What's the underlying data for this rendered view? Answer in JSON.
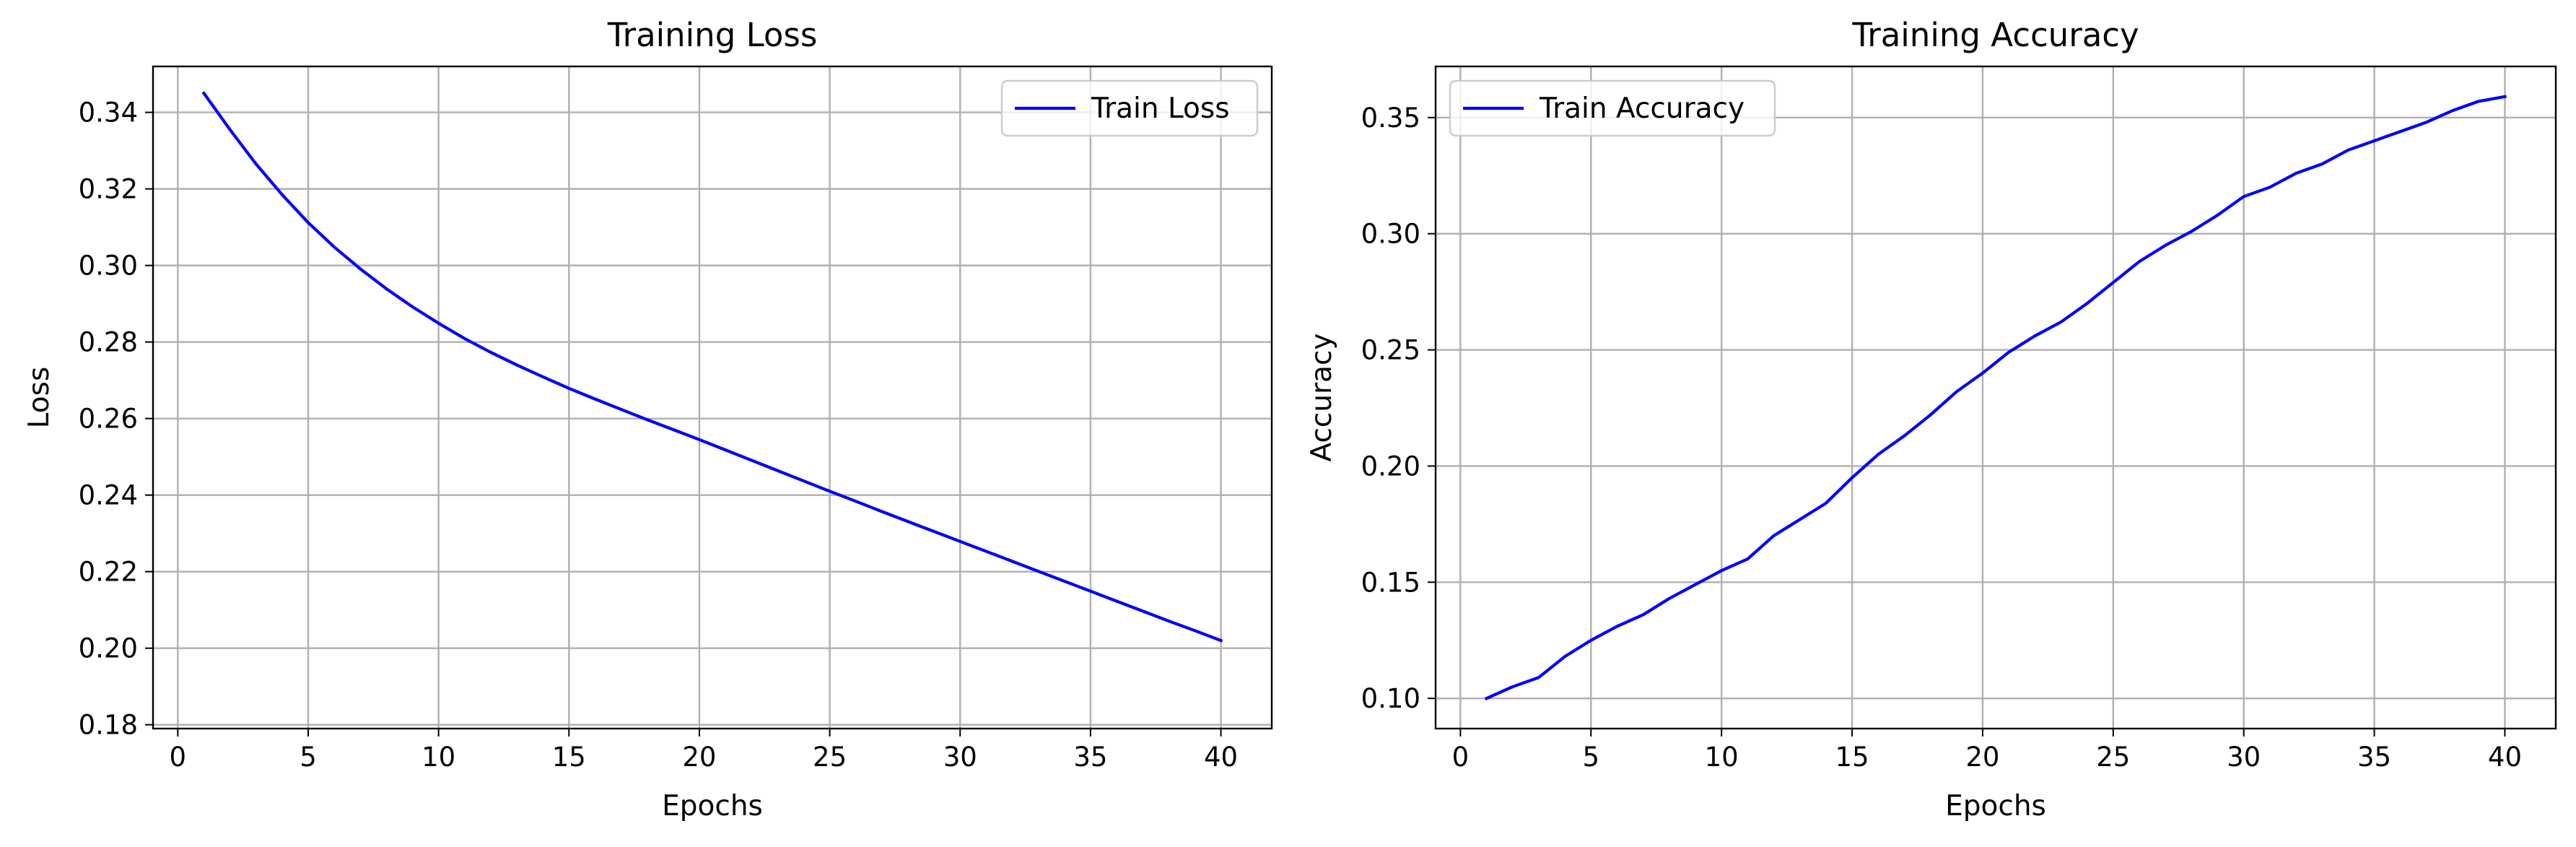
{
  "chart_data": [
    {
      "type": "line",
      "title": "Training Loss",
      "xlabel": "Epochs",
      "ylabel": "Loss",
      "xlim": [
        -0.95,
        41.95
      ],
      "ylim": [
        0.179,
        0.352
      ],
      "xticks": [
        0,
        5,
        10,
        15,
        20,
        25,
        30,
        35,
        40
      ],
      "yticks": [
        0.18,
        0.2,
        0.22,
        0.24,
        0.26,
        0.28,
        0.3,
        0.32,
        0.34
      ],
      "ytick_labels": [
        "0.18",
        "0.20",
        "0.22",
        "0.24",
        "0.26",
        "0.28",
        "0.30",
        "0.32",
        "0.34"
      ],
      "grid": true,
      "legend": "top-right",
      "series": [
        {
          "name": "Train Loss",
          "color": "#0000ff",
          "x": [
            1,
            2,
            3,
            4,
            5,
            6,
            7,
            8,
            9,
            10,
            11,
            12,
            13,
            14,
            15,
            16,
            17,
            18,
            19,
            20,
            21,
            22,
            23,
            24,
            25,
            26,
            27,
            28,
            29,
            30,
            31,
            32,
            33,
            34,
            35,
            36,
            37,
            38,
            39,
            40
          ],
          "values": [
            0.345,
            0.3355,
            0.3265,
            0.3185,
            0.3112,
            0.3048,
            0.2991,
            0.2939,
            0.2892,
            0.2849,
            0.2809,
            0.2773,
            0.274,
            0.2709,
            0.2679,
            0.2651,
            0.2624,
            0.2597,
            0.2571,
            0.2545,
            0.2518,
            0.2491,
            0.2464,
            0.2437,
            0.241,
            0.2384,
            0.2357,
            0.2331,
            0.2305,
            0.2279,
            0.2253,
            0.2227,
            0.2201,
            0.2175,
            0.2149,
            0.2123,
            0.2097,
            0.2071,
            0.2046,
            0.202
          ]
        }
      ]
    },
    {
      "type": "line",
      "title": "Training Accuracy",
      "xlabel": "Epochs",
      "ylabel": "Accuracy",
      "xlim": [
        -0.95,
        41.95
      ],
      "ylim": [
        0.087,
        0.372
      ],
      "xticks": [
        0,
        5,
        10,
        15,
        20,
        25,
        30,
        35,
        40
      ],
      "yticks": [
        0.1,
        0.15,
        0.2,
        0.25,
        0.3,
        0.35
      ],
      "ytick_labels": [
        "0.10",
        "0.15",
        "0.20",
        "0.25",
        "0.30",
        "0.35"
      ],
      "grid": true,
      "legend": "top-left",
      "series": [
        {
          "name": "Train Accuracy",
          "color": "#0000ff",
          "x": [
            1,
            2,
            3,
            4,
            5,
            6,
            7,
            8,
            9,
            10,
            11,
            12,
            13,
            14,
            15,
            16,
            17,
            18,
            19,
            20,
            21,
            22,
            23,
            24,
            25,
            26,
            27,
            28,
            29,
            30,
            31,
            32,
            33,
            34,
            35,
            36,
            37,
            38,
            39,
            40
          ],
          "values": [
            0.1,
            0.105,
            0.109,
            0.118,
            0.125,
            0.131,
            0.136,
            0.143,
            0.149,
            0.155,
            0.16,
            0.17,
            0.177,
            0.184,
            0.195,
            0.205,
            0.213,
            0.222,
            0.232,
            0.24,
            0.249,
            0.256,
            0.262,
            0.27,
            0.279,
            0.288,
            0.295,
            0.301,
            0.308,
            0.316,
            0.32,
            0.326,
            0.33,
            0.336,
            0.34,
            0.344,
            0.348,
            0.353,
            0.357,
            0.359
          ]
        }
      ]
    }
  ]
}
